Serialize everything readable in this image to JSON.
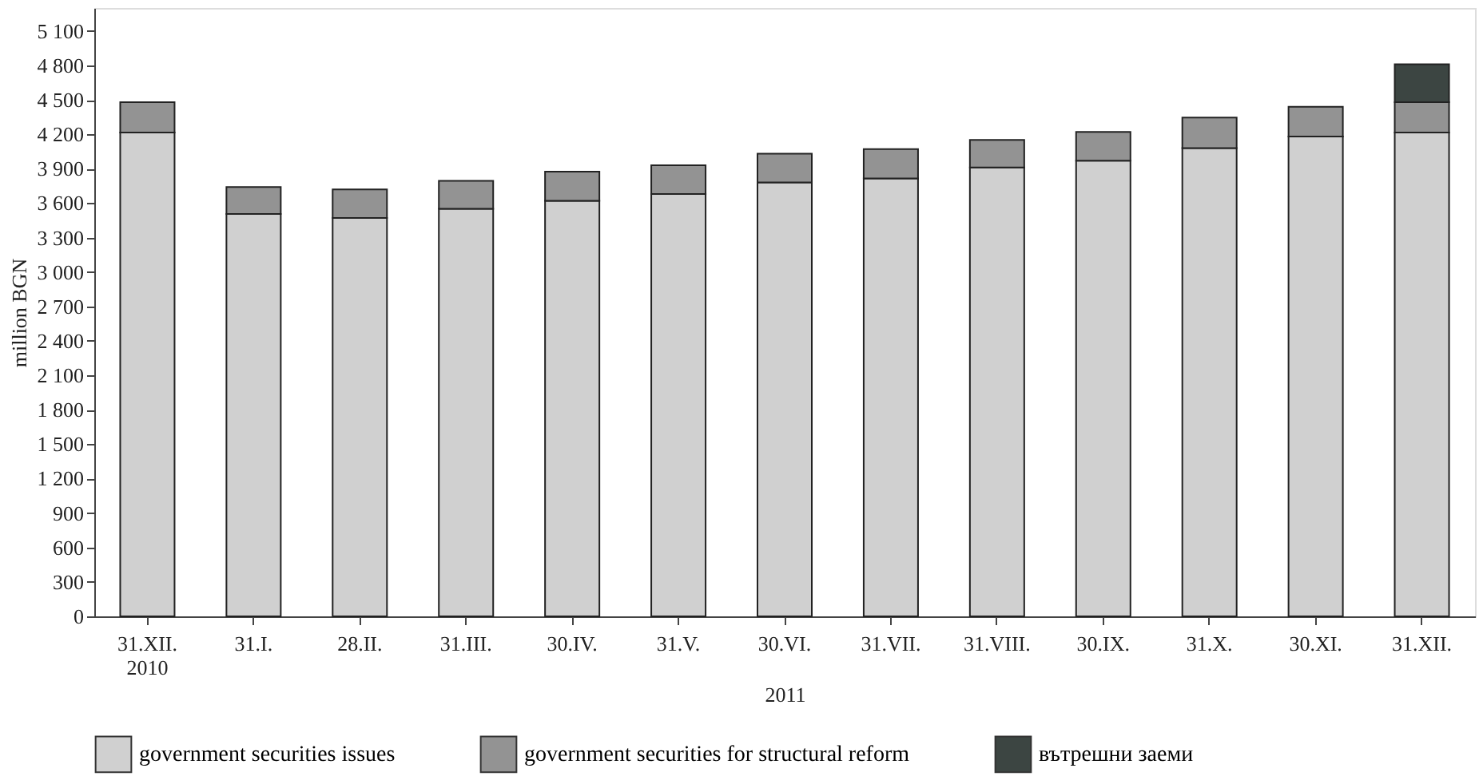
{
  "chart_data": {
    "type": "bar",
    "stacked": true,
    "ylabel": "million BGN",
    "categories": [
      "31.XII.\n2010",
      "31.I.",
      "28.II.",
      "31.III.",
      "30.IV.",
      "31.V.",
      "30.VI.",
      "31.VII.",
      "31.VIII.",
      "30.IX.",
      "31.X.",
      "30.XI.",
      "31.XII."
    ],
    "series": [
      {
        "name": "government securities issues",
        "color": "#d0d0d0",
        "values": [
          4215,
          3505,
          3470,
          3550,
          3620,
          3680,
          3780,
          3815,
          3910,
          3970,
          4080,
          4180,
          4215
        ]
      },
      {
        "name": "government securities for structural reform",
        "color": "#939393",
        "values": [
          265,
          235,
          250,
          245,
          255,
          250,
          250,
          255,
          240,
          250,
          265,
          260,
          265
        ]
      },
      {
        "name": "вътрешни заеми",
        "color": "#3c4542",
        "values": [
          null,
          null,
          null,
          null,
          null,
          null,
          null,
          null,
          null,
          null,
          null,
          null,
          330
        ]
      }
    ],
    "annotations": [
      "2011"
    ],
    "ylim": [
      0,
      5300
    ],
    "yticks": [
      0,
      300,
      600,
      900,
      1200,
      1500,
      1800,
      2100,
      2400,
      2700,
      3000,
      3300,
      3600,
      3900,
      4200,
      4500,
      4800,
      5100
    ],
    "grid": false,
    "legend": "bottom"
  }
}
